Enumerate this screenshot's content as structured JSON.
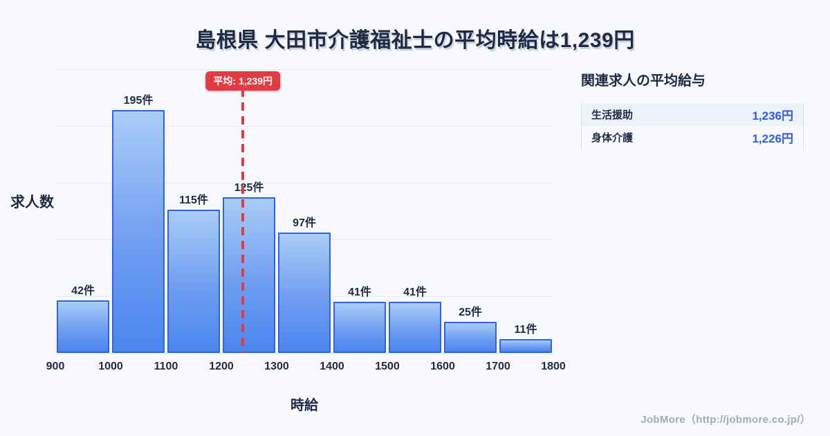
{
  "page": {
    "title": "島根県 大田市介護福祉士の平均時給は1,239円",
    "background": "#f8f9fc"
  },
  "chart_data": {
    "type": "bar",
    "title": "島根県 大田市介護福祉士の平均時給は1,239円",
    "bin_edges": [
      900,
      1000,
      1100,
      1200,
      1300,
      1400,
      1500,
      1600,
      1700,
      1800
    ],
    "values": [
      42,
      195,
      115,
      125,
      97,
      41,
      41,
      25,
      11
    ],
    "bar_labels": [
      "42件",
      "195件",
      "115件",
      "125件",
      "97件",
      "41件",
      "41件",
      "25件",
      "11件"
    ],
    "x_ticks": [
      "900",
      "1000",
      "1100",
      "1200",
      "1300",
      "1400",
      "1500",
      "1600",
      "1700",
      "1800"
    ],
    "xlabel": "時給",
    "ylabel": "求人数",
    "xlim": [
      900,
      1800
    ],
    "ylim": [
      0,
      228
    ],
    "grid": true,
    "gridline_count": 6,
    "legend_position": "none",
    "average_value": 1239,
    "average_label": "平均: 1,239円",
    "colors": {
      "bar_fill_top": "#a9ccf6",
      "bar_fill_bottom": "#4a86ef",
      "bar_border": "#2b66e0",
      "average": "#e13c44",
      "gridline": "#e7ebf3",
      "text": "#1e2a44"
    }
  },
  "side_panel": {
    "title": "関連求人の平均給与",
    "rows": [
      {
        "label": "生活援助",
        "value": "1,236円"
      },
      {
        "label": "身体介護",
        "value": "1,226円"
      }
    ],
    "value_color": "#2e5ce6"
  },
  "footer": {
    "credit": "JobMore（http://jobmore.co.jp/）"
  }
}
